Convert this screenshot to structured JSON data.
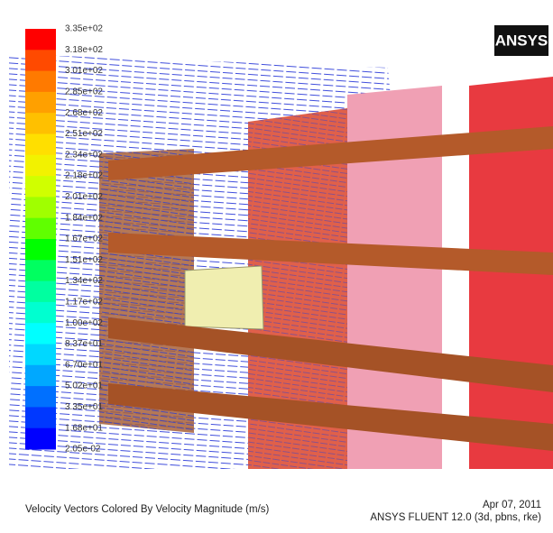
{
  "logo": "ANSYS",
  "legend": {
    "labels": [
      "3.35e+02",
      "3.18e+02",
      "3.01e+02",
      "2.85e+02",
      "2.68e+02",
      "2.51e+02",
      "2.34e+02",
      "2.18e+02",
      "2.01e+02",
      "1.84e+02",
      "1.67e+02",
      "1.51e+02",
      "1.34e+02",
      "1.17e+02",
      "1.00e+02",
      "8.37e+01",
      "6.70e+01",
      "5.02e+01",
      "3.35e+01",
      "1.68e+01",
      "2.05e-02"
    ],
    "colors": [
      "#ff0000",
      "#ff4a00",
      "#ff7a00",
      "#ffa000",
      "#ffc000",
      "#ffdf00",
      "#f2f200",
      "#d0ff00",
      "#a0ff00",
      "#60ff00",
      "#00ff00",
      "#00ff60",
      "#00ffa0",
      "#00ffd0",
      "#00ffff",
      "#00d8ff",
      "#00a8ff",
      "#0070ff",
      "#0038ff",
      "#0000ff"
    ]
  },
  "caption": {
    "title": "Velocity Vectors Colored By Velocity Magnitude (m/s)",
    "date": "Apr 07, 2011",
    "software": "ANSYS FLUENT 12.0 (3d, pbns, rke)"
  }
}
